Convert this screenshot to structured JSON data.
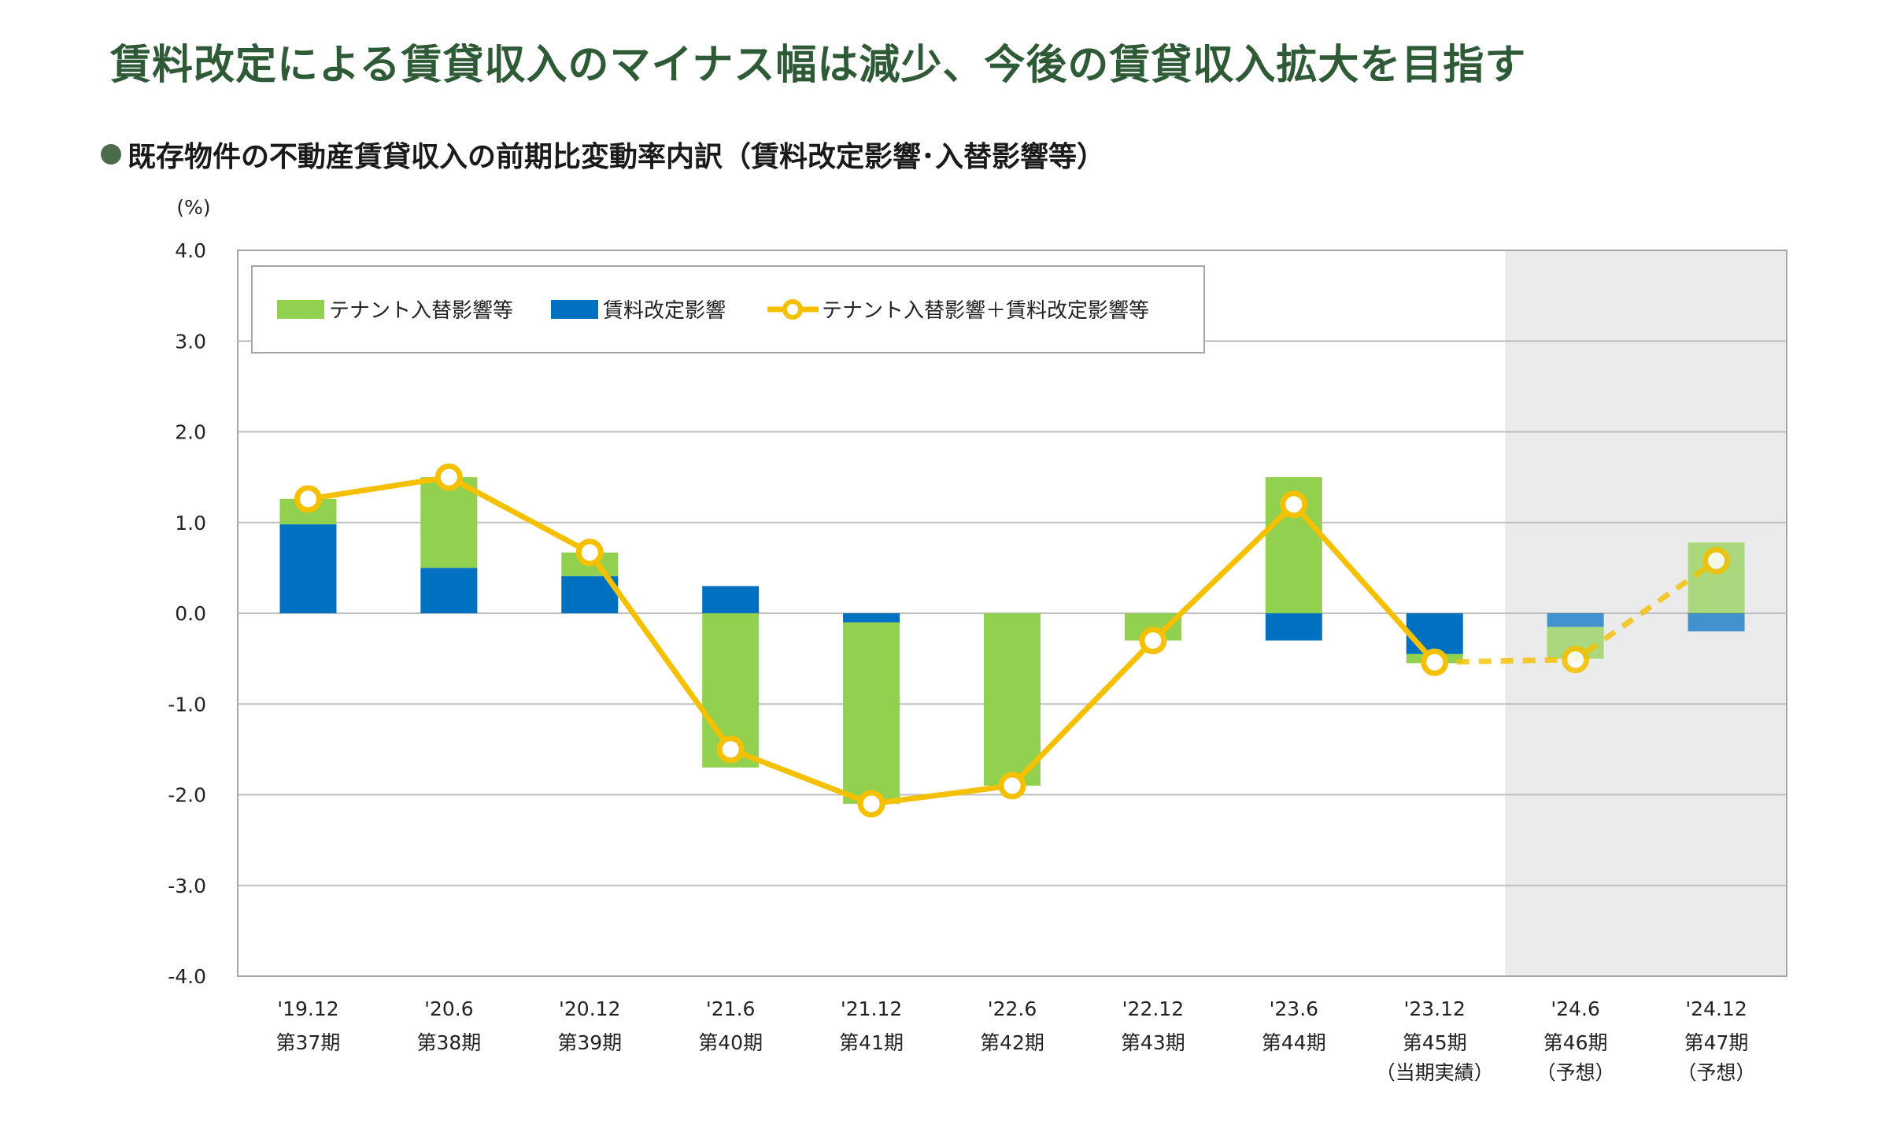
{
  "title": "賃料改定による賃貸収入のマイナス幅は減少、今後の賃貸収入拡大を目指す",
  "subtitle": "既存物件の不動産賃貸収入の前期比変動率内訳（賃料改定影響･入替影響等）",
  "colors": {
    "title": "#2e5a36",
    "tenant": "#92d050",
    "rent": "#0070c0",
    "line": "#f5c000",
    "forecast_bg": "#ebebeb",
    "grid": "#bfbfbf"
  },
  "chart_data": {
    "type": "bar",
    "stacked": true,
    "unit_label": "(%)",
    "ylim": [
      -4.0,
      4.0
    ],
    "yticks": [
      "4.0",
      "3.0",
      "2.0",
      "1.0",
      "0.0",
      "-1.0",
      "-2.0",
      "-3.0",
      "-4.0"
    ],
    "categories": [
      {
        "date": "'19.12",
        "period": "第37期",
        "note": ""
      },
      {
        "date": "'20.6",
        "period": "第38期",
        "note": ""
      },
      {
        "date": "'20.12",
        "period": "第39期",
        "note": ""
      },
      {
        "date": "'21.6",
        "period": "第40期",
        "note": ""
      },
      {
        "date": "'21.12",
        "period": "第41期",
        "note": ""
      },
      {
        "date": "'22.6",
        "period": "第42期",
        "note": ""
      },
      {
        "date": "'22.12",
        "period": "第43期",
        "note": ""
      },
      {
        "date": "'23.6",
        "period": "第44期",
        "note": ""
      },
      {
        "date": "'23.12",
        "period": "第45期",
        "note": "（当期実績）"
      },
      {
        "date": "'24.6",
        "period": "第46期",
        "note": "（予想）"
      },
      {
        "date": "'24.12",
        "period": "第47期",
        "note": "（予想）"
      }
    ],
    "forecast_from_index": 9,
    "grid": "horizontal",
    "legend_position": "top-left",
    "series": [
      {
        "name": "テナント入替影響等",
        "kind": "bar",
        "values": [
          0.28,
          1.0,
          0.26,
          -1.7,
          -2.0,
          -1.9,
          -0.3,
          1.5,
          -0.1,
          -0.35,
          0.78
        ]
      },
      {
        "name": "賃料改定影響",
        "kind": "bar",
        "values": [
          0.98,
          0.5,
          0.41,
          0.3,
          -0.1,
          0.0,
          0.0,
          -0.3,
          -0.45,
          -0.15,
          -0.2
        ]
      },
      {
        "name": "テナント入替影響＋賃料改定影響等",
        "kind": "line",
        "values": [
          1.26,
          1.5,
          0.67,
          -1.5,
          -2.1,
          -1.9,
          -0.3,
          1.2,
          -0.54,
          -0.51,
          0.58
        ]
      }
    ]
  }
}
